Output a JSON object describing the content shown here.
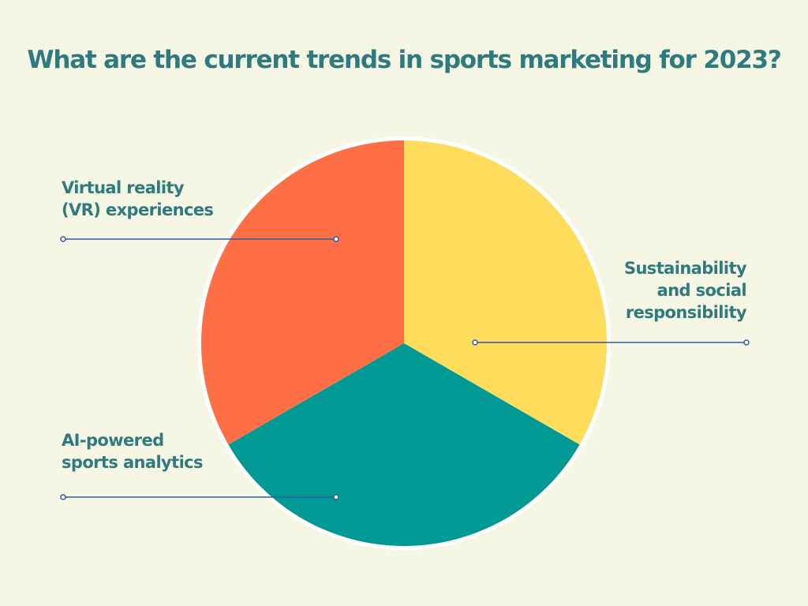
{
  "chart_data": {
    "type": "pie",
    "title": "What are the current trends in sports marketing for 2023?",
    "slices": [
      {
        "label": "Sustainability and social responsibility",
        "value": 33.33,
        "color": "#ffdc5b"
      },
      {
        "label": "AI-powered sports analytics",
        "value": 33.33,
        "color": "#009994"
      },
      {
        "label": "Virtual reality (VR) experiences",
        "value": 33.33,
        "color": "#ff6f45"
      }
    ],
    "start_angle": "top, clockwise",
    "legend": "callout labels with leader lines",
    "colors": {
      "background": "#f5f6e4",
      "text": "#2e7a7e",
      "leader": "#2f5aa8"
    }
  }
}
